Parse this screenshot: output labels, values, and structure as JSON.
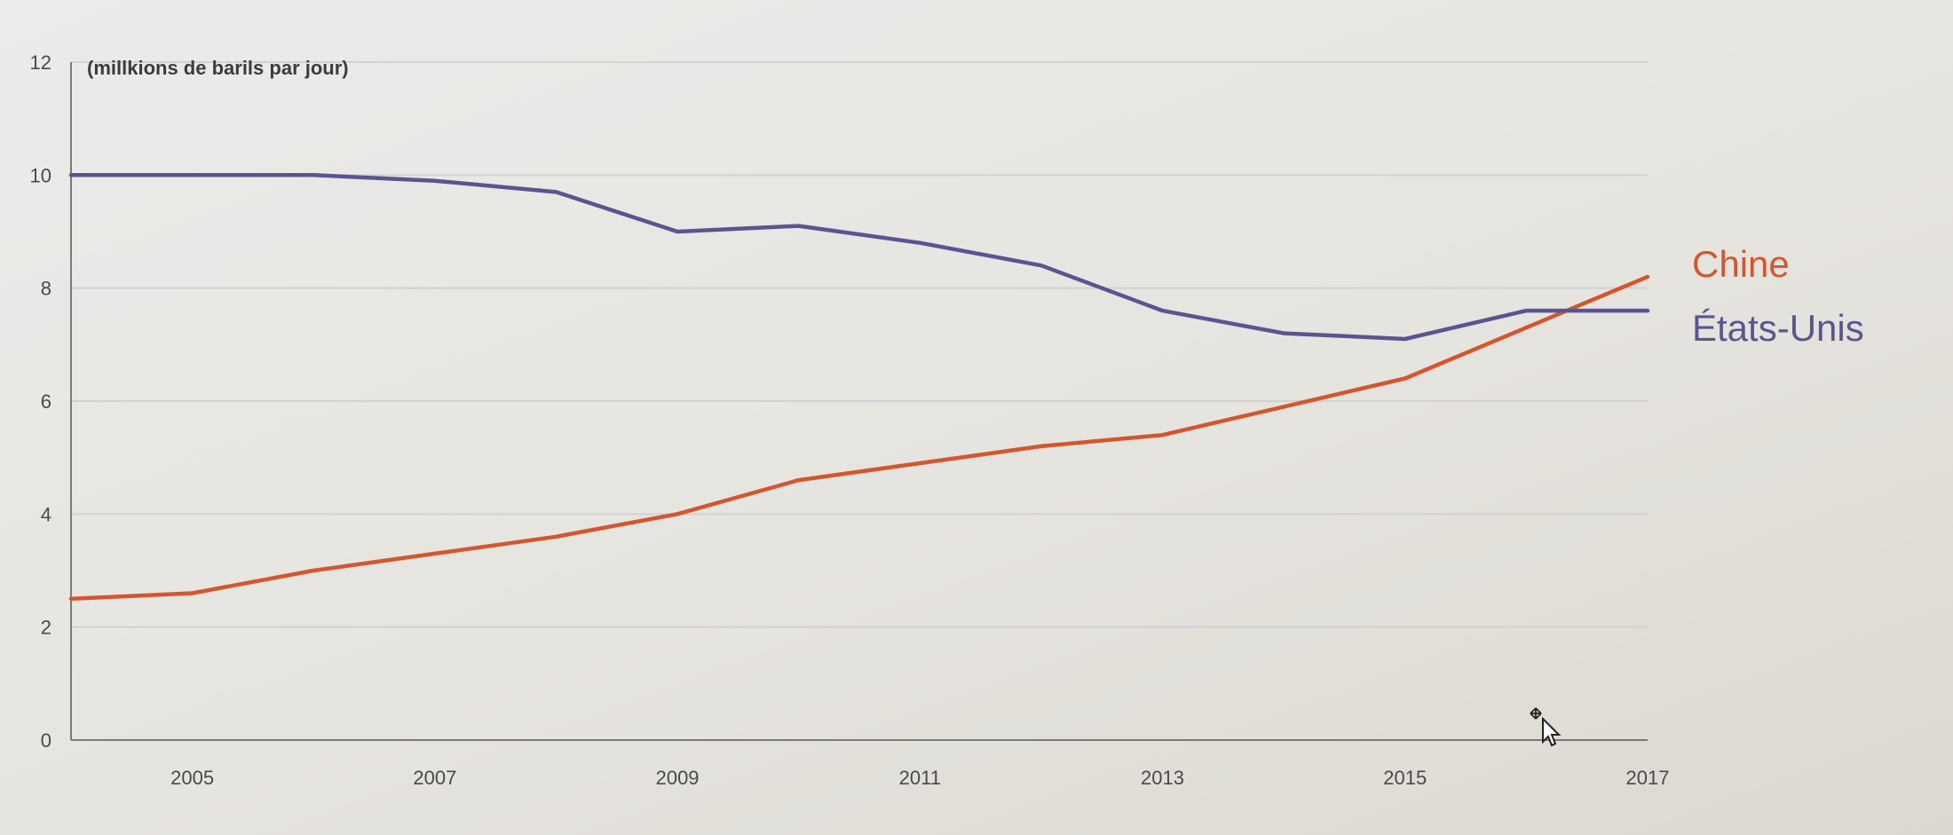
{
  "chart_data": {
    "type": "line",
    "unit_label": "(millkions de barils par jour)",
    "x": [
      2004,
      2005,
      2006,
      2007,
      2008,
      2009,
      2010,
      2011,
      2012,
      2013,
      2014,
      2015,
      2016,
      2017
    ],
    "x_ticks": [
      "2005",
      "2007",
      "2009",
      "2011",
      "2013",
      "2015",
      "2017"
    ],
    "x_tick_values": [
      2005,
      2007,
      2009,
      2011,
      2013,
      2015,
      2017
    ],
    "y_ticks": [
      "0",
      "2",
      "4",
      "6",
      "8",
      "10",
      "12"
    ],
    "y_tick_values": [
      0,
      2,
      4,
      6,
      8,
      10,
      12
    ],
    "xlim": [
      2004,
      2017
    ],
    "ylim": [
      0,
      12
    ],
    "grid": true,
    "series": [
      {
        "name": "Chine",
        "color": "#d4562f",
        "values": [
          2.5,
          2.6,
          3.0,
          3.3,
          3.6,
          4.0,
          4.6,
          4.9,
          5.2,
          5.4,
          5.9,
          6.4,
          7.3,
          8.2
        ]
      },
      {
        "name": "États-Unis",
        "color": "#5a5590",
        "values": [
          10.0,
          10.0,
          10.0,
          9.9,
          9.7,
          9.0,
          9.1,
          8.8,
          8.4,
          7.6,
          7.2,
          7.1,
          7.6,
          7.6
        ]
      }
    ]
  },
  "cursor": {
    "icon": "move-cursor-icon"
  }
}
